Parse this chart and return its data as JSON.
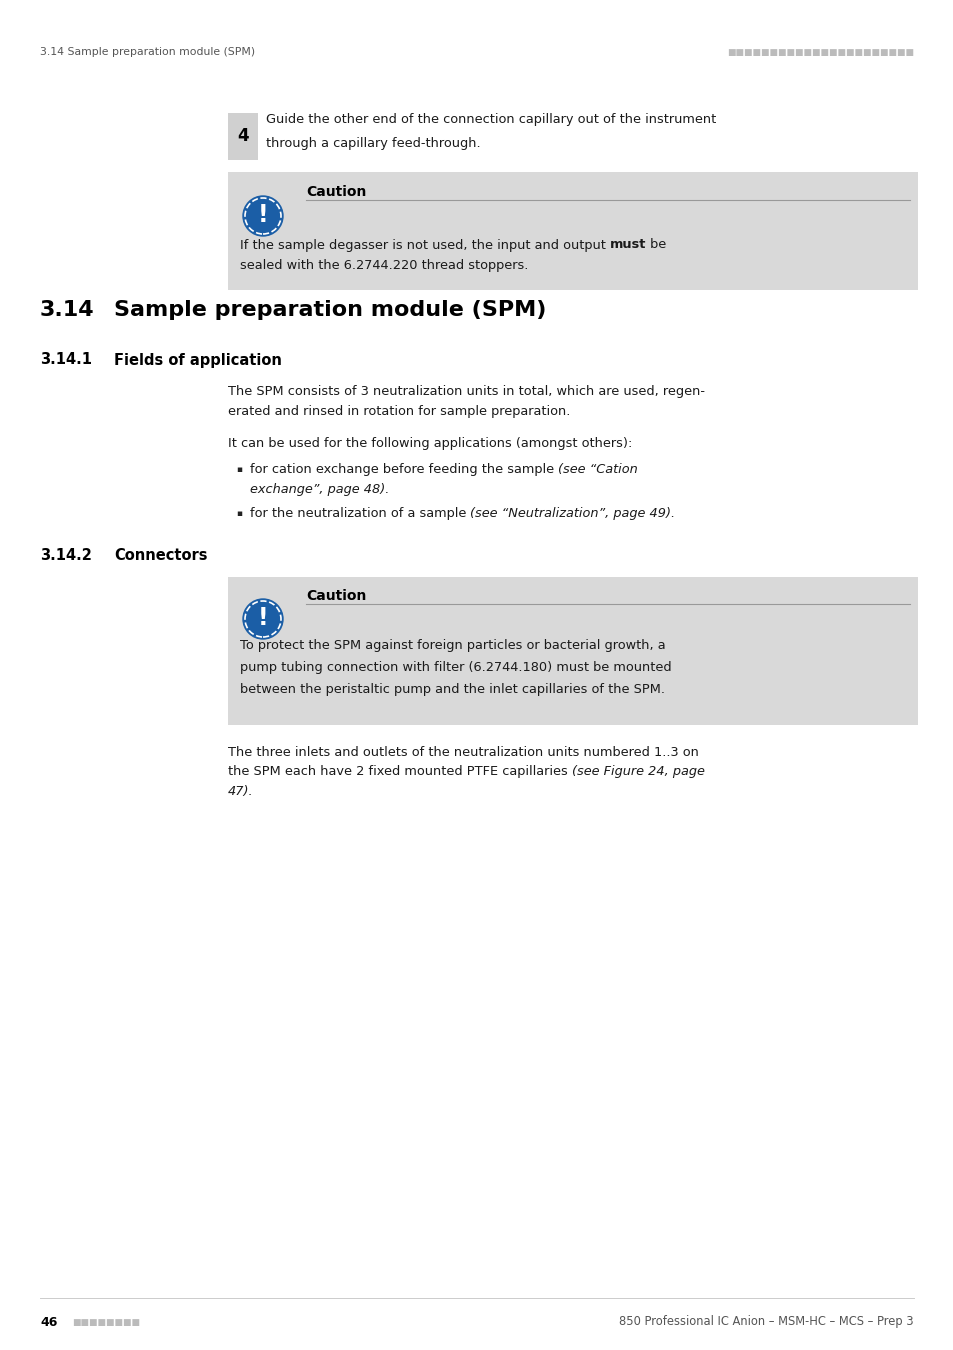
{
  "page_bg": "#ffffff",
  "header_text_left": "3.14 Sample preparation module (SPM)",
  "header_dots": "■■■■■■■■■■■■■■■■■■■■■■",
  "step4_number": "4",
  "step4_text_line1": "Guide the other end of the connection capillary out of the instrument",
  "step4_text_line2": "through a capillary feed-through.",
  "caution1_title": "Caution",
  "caution1_pre_bold": "If the sample degasser is not used, the input and output ",
  "caution1_bold": "must",
  "caution1_post_bold": " be",
  "caution1_line2": "sealed with the 6.2744.220 thread stoppers.",
  "section_num": "3.14",
  "section_title": "Sample preparation module (SPM)",
  "subsection1_num": "3.14.1",
  "subsection1_title": "Fields of application",
  "body1_line1": "The SPM consists of 3 neutralization units in total, which are used, regen-",
  "body1_line2": "erated and rinsed in rotation for sample preparation.",
  "body2_line1": "It can be used for the following applications (amongst others):",
  "bullet1_normal": "for cation exchange before feeding the sample ",
  "bullet1_italic": "(see “Cation",
  "bullet1_italic2": "exchange”, page 48).",
  "bullet2_normal": "for the neutralization of a sample ",
  "bullet2_italic": "(see “Neutralization”, page 49).",
  "subsection2_num": "3.14.2",
  "subsection2_title": "Connectors",
  "caution2_title": "Caution",
  "caution2_line1": "To protect the SPM against foreign particles or bacterial growth, a",
  "caution2_line2": "pump tubing connection with filter (6.2744.180) must be mounted",
  "caution2_line3": "between the peristaltic pump and the inlet capillaries of the SPM.",
  "body3_line1": "The three inlets and outlets of the neutralization units numbered 1..3 on",
  "body3_line2": "the SPM each have 2 fixed mounted PTFE capillaries ",
  "body3_italic": "(see Figure 24, page",
  "body3_line3": "47).",
  "footer_page": "46",
  "footer_dots": "■■■■■■■■",
  "footer_right": "850 Professional IC Anion – MSM-HC – MCS – Prep 3",
  "caution_bg": "#d9d9d9",
  "icon_blue": "#1b5ea6",
  "text_color": "#1a1a1a",
  "gray_text": "#555555",
  "light_gray": "#aaaaaa"
}
